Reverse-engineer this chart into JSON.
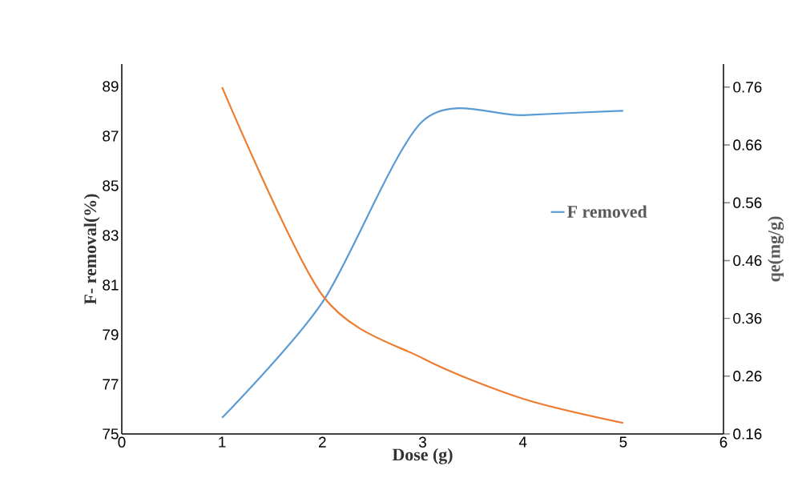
{
  "chart_data": {
    "type": "line",
    "xlabel": "Dose (g)",
    "ylabel": "F- removal(%)",
    "y2label": "qe(mg/g)",
    "x": [
      1,
      2,
      3,
      4,
      5
    ],
    "series": [
      {
        "name": "F removed",
        "color": "#5b9bd5",
        "values": [
          75.65,
          80.3,
          87.6,
          87.84,
          88.02
        ]
      },
      {
        "color": "#ed7d31",
        "axis": "y2",
        "values": [
          0.76,
          0.4,
          0.291,
          0.221,
          0.179
        ]
      }
    ],
    "xlim": [
      0,
      6
    ],
    "xticks": [
      0,
      1,
      2,
      3,
      4,
      5,
      6
    ],
    "ylim": [
      75,
      89.9
    ],
    "yticks": [
      75,
      77,
      79,
      81,
      83,
      85,
      87,
      89
    ],
    "y2lim": [
      0.16,
      0.8
    ],
    "y2ticks": [
      0.16,
      0.26,
      0.36,
      0.46,
      0.56,
      0.66,
      0.76
    ],
    "legend": "right",
    "grid": false,
    "marker": "none",
    "line_style": "solid"
  }
}
